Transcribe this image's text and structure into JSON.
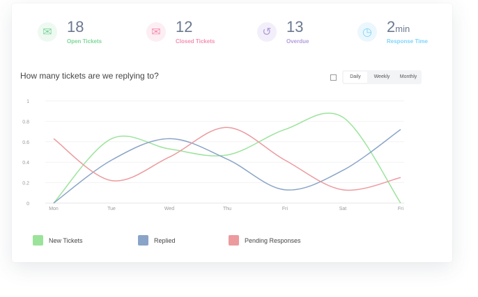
{
  "stats": [
    {
      "value": "18",
      "unit": "",
      "label": "Open Tickets",
      "color": "#7ed69a",
      "bg": "#eef9f1",
      "icon": "envelope-open-icon"
    },
    {
      "value": "12",
      "unit": "",
      "label": "Closed Tickets",
      "color": "#f48fb1",
      "bg": "#fdeef3",
      "icon": "envelope-icon"
    },
    {
      "value": "13",
      "unit": "",
      "label": "Overdue",
      "color": "#b39ddb",
      "bg": "#f2effa",
      "icon": "history-icon"
    },
    {
      "value": "2",
      "unit": "min",
      "label": "Response Time",
      "color": "#81d4fa",
      "bg": "#ebf7fd",
      "icon": "clock-icon"
    }
  ],
  "chart_title": "How many tickets are we replying to?",
  "period": {
    "options": [
      "Daily",
      "Weekly",
      "Monthly"
    ],
    "selected": "Daily"
  },
  "chart_data": {
    "type": "line",
    "categories": [
      "Mon",
      "Tue",
      "Wed",
      "Thu",
      "Fri",
      "Sat",
      "Fri"
    ],
    "ylim": [
      0,
      1
    ],
    "yticks": [
      "0",
      "0.2",
      "0.4",
      "0.6",
      "0.8",
      "1"
    ],
    "grid": true,
    "legend": "bottom",
    "series": [
      {
        "name": "New Tickets",
        "color": "#9be39b",
        "values": [
          0,
          0.63,
          0.53,
          0.47,
          0.72,
          0.84,
          0
        ]
      },
      {
        "name": "Replied",
        "color": "#8aa4c8",
        "values": [
          0,
          0.42,
          0.63,
          0.43,
          0.13,
          0.32,
          0.72
        ]
      },
      {
        "name": "Pending Responses",
        "color": "#ec9a9e",
        "values": [
          0.63,
          0.22,
          0.45,
          0.74,
          0.42,
          0.13,
          0.25
        ]
      }
    ]
  }
}
